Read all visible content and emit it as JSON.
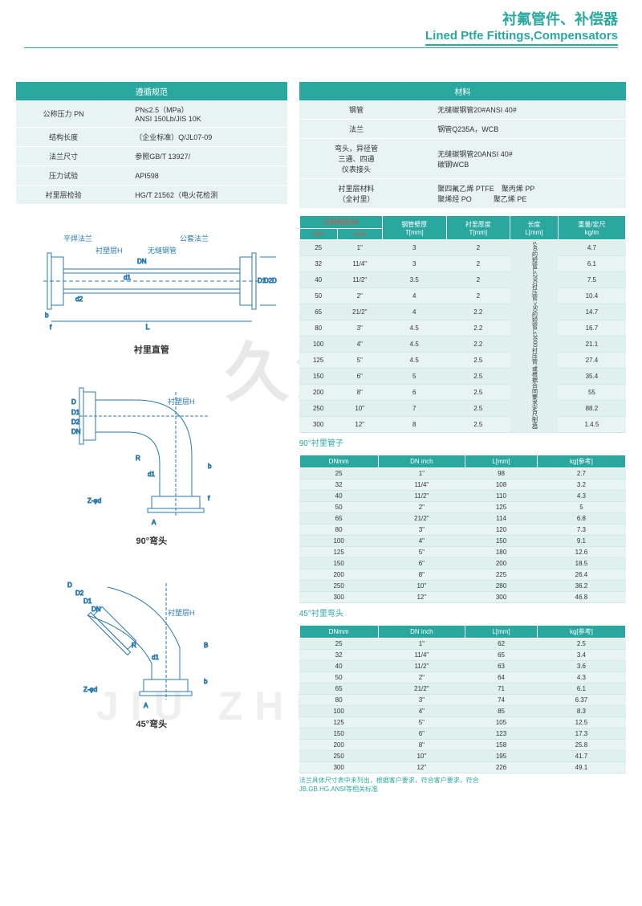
{
  "header": {
    "title_cn": "衬氟管件、补偿器",
    "title_en": "Lined Ptfe Fittings,Compensators"
  },
  "spec_table": {
    "title": "遵循规范",
    "rows": [
      {
        "k": "公称压力 PN",
        "v": "PN≤2.5（MPa）\nANSI 150Lb/JIS 10K"
      },
      {
        "k": "结构长度",
        "v": "（企业标准）Q/JL07-09"
      },
      {
        "k": "法兰尺寸",
        "v": "参照GB/T 13927/"
      },
      {
        "k": "压力试验",
        "v": "API598"
      },
      {
        "k": "衬里层检验",
        "v": "HG/T 21562（电火花检测"
      }
    ]
  },
  "material_table": {
    "title": "材料",
    "rows": [
      {
        "k": "钢管",
        "v": "无缝碳钢管20#ANSI 40#"
      },
      {
        "k": "法兰",
        "v": "钢管Q235A，WCB"
      },
      {
        "k": "弯头，异径管\n三通、四通\n仪表接头",
        "v": "无缝碳钢管20ANSI 40#\n碳钢WCB"
      },
      {
        "k": "衬里层材料\n（全衬里）",
        "v": "聚四氟乙烯 PTFE　聚丙烯 PP\n聚烯烃 PO　　　聚乙烯 PE"
      }
    ]
  },
  "diagrams": {
    "d1": {
      "caption": "衬里直管",
      "labels": [
        "平焊法兰",
        "衬塑层H",
        "公套法兰",
        "无缝钢管"
      ]
    },
    "d2": {
      "caption": "90°弯头",
      "labels": [
        "衬塑层H"
      ]
    },
    "d3": {
      "caption": "45°弯头",
      "labels": [
        "衬塑层H"
      ]
    }
  },
  "table1": {
    "headers": [
      "公称直径DN",
      "",
      "钢管壁厚",
      "衬里厚度",
      "长度",
      "重量/定尺"
    ],
    "subheaders": [
      "mm",
      "inch",
      "T[mm]",
      "T[mm]",
      "L[mm]",
      "kg/m"
    ],
    "length_note": "≤40的短管L≤200衬压管:\n>50的短管L≤3000衬压管:\n或根据合同要求定尺制造)",
    "rows": [
      [
        "25",
        "1\"",
        "3",
        "2",
        "",
        "4.7"
      ],
      [
        "32",
        "11/4\"",
        "3",
        "2",
        "",
        "6.1"
      ],
      [
        "40",
        "11/2\"",
        "3.5",
        "2",
        "",
        "7.5"
      ],
      [
        "50",
        "2\"",
        "4",
        "2",
        "",
        "10.4"
      ],
      [
        "65",
        "21/2\"",
        "4",
        "2.2",
        "",
        "14.7"
      ],
      [
        "80",
        "3\"",
        "4.5",
        "2.2",
        "",
        "16.7"
      ],
      [
        "100",
        "4\"",
        "4.5",
        "2.2",
        "",
        "21.1"
      ],
      [
        "125",
        "5\"",
        "4.5",
        "2.5",
        "",
        "27.4"
      ],
      [
        "150",
        "6\"",
        "5",
        "2.5",
        "",
        "35.4"
      ],
      [
        "200",
        "8\"",
        "6",
        "2.5",
        "",
        "55"
      ],
      [
        "250",
        "10\"",
        "7",
        "2.5",
        "",
        "88.2"
      ],
      [
        "300",
        "12\"",
        "8",
        "2.5",
        "",
        "1.4.5"
      ]
    ]
  },
  "table2": {
    "title": "90°衬里管子",
    "headers": [
      "DNmm",
      "DN inch",
      "L[mm]",
      "kg[参考]"
    ],
    "rows": [
      [
        "25",
        "1\"",
        "98",
        "2.7"
      ],
      [
        "32",
        "11/4\"",
        "108",
        "3.2"
      ],
      [
        "40",
        "11/2\"",
        "110",
        "4.3"
      ],
      [
        "50",
        "2\"",
        "125",
        "5"
      ],
      [
        "65",
        "21/2\"",
        "114",
        "6.8"
      ],
      [
        "80",
        "3\"",
        "120",
        "7.3"
      ],
      [
        "100",
        "4\"",
        "150",
        "9.1"
      ],
      [
        "125",
        "5\"",
        "180",
        "12.6"
      ],
      [
        "150",
        "6\"",
        "200",
        "18.5"
      ],
      [
        "200",
        "8\"",
        "225",
        "26.4"
      ],
      [
        "250",
        "10\"",
        "280",
        "36.2"
      ],
      [
        "300",
        "12\"",
        "300",
        "46.8"
      ]
    ]
  },
  "table3": {
    "title": "45°衬里弯头",
    "headers": [
      "DNmm",
      "DN inch",
      "L[mm]",
      "kg[参考]"
    ],
    "rows": [
      [
        "25",
        "1\"",
        "62",
        "2.5"
      ],
      [
        "32",
        "11/4\"",
        "65",
        "3.4"
      ],
      [
        "40",
        "11/2\"",
        "63",
        "3.6"
      ],
      [
        "50",
        "2\"",
        "64",
        "4.3"
      ],
      [
        "65",
        "21/2\"",
        "71",
        "6.1"
      ],
      [
        "80",
        "3\"",
        "74",
        "6.37"
      ],
      [
        "100",
        "4\"",
        "85",
        "8.3"
      ],
      [
        "125",
        "5\"",
        "105",
        "12.5"
      ],
      [
        "150",
        "6\"",
        "123",
        "17.3"
      ],
      [
        "200",
        "8\"",
        "158",
        "25.8"
      ],
      [
        "250",
        "10\"",
        "195",
        "41.7"
      ],
      [
        "300",
        "12\"",
        "226",
        "49.1"
      ]
    ]
  },
  "footnote": "法兰具体尺寸表中未列出，根据客户要求，符合客户要求，符合\nJB.GB.HG.ANSI等相关标准"
}
